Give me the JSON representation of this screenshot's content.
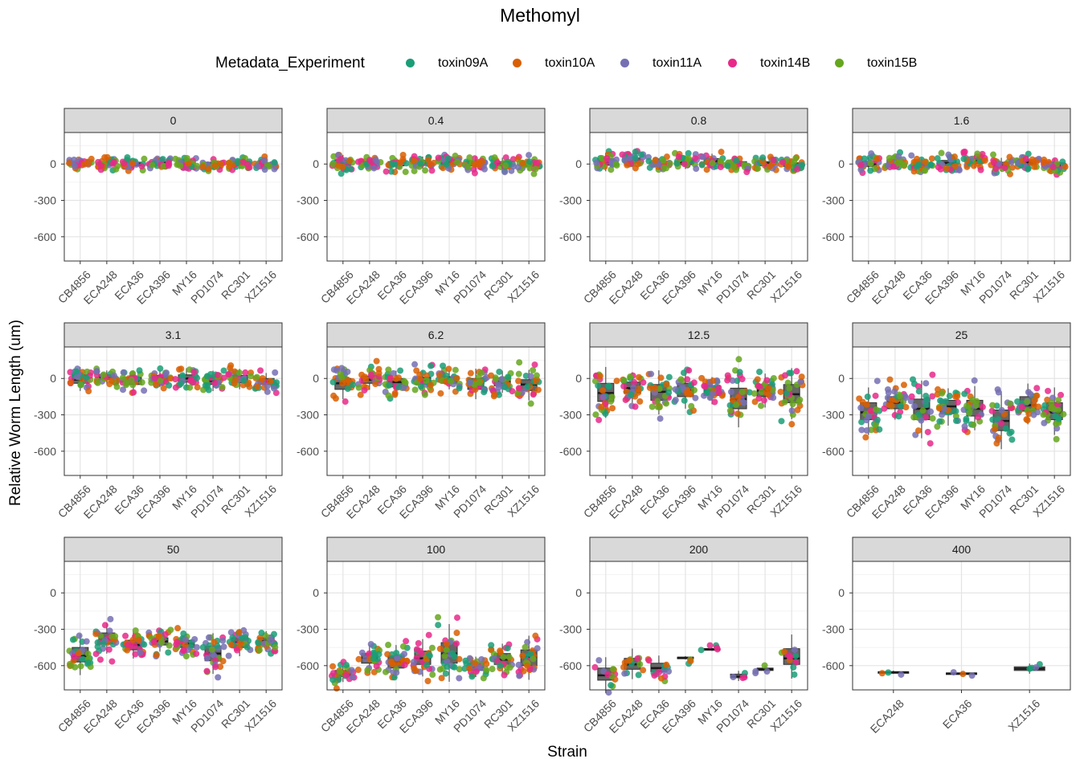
{
  "chart_data": {
    "type": "scatter",
    "subtype": "faceted boxplot with jittered points",
    "title": "Methomyl",
    "xlabel": "Strain",
    "ylabel": "Relative Worm Length (um)",
    "ylim": [
      -800,
      260
    ],
    "y_ticks": [
      0,
      -300,
      -600
    ],
    "grid": true,
    "legend_position": "top",
    "legend": {
      "title": "Metadata_Experiment",
      "entries": [
        {
          "name": "toxin09A",
          "color": "#1b9e77"
        },
        {
          "name": "toxin10A",
          "color": "#d95f02"
        },
        {
          "name": "toxin11A",
          "color": "#7570b3"
        },
        {
          "name": "toxin14B",
          "color": "#e7298a"
        },
        {
          "name": "toxin15B",
          "color": "#66a61e"
        }
      ]
    },
    "strains": [
      "CB4856",
      "ECA248",
      "ECA36",
      "ECA396",
      "MY16",
      "PD1074",
      "RC301",
      "XZ1516"
    ],
    "panels": [
      {
        "label": "0",
        "categories": [
          "CB4856",
          "ECA248",
          "ECA36",
          "ECA396",
          "MY16",
          "PD1074",
          "RC301",
          "XZ1516"
        ],
        "boxes": [
          [
            -15,
            0,
            15
          ],
          [
            -10,
            5,
            20
          ],
          [
            -15,
            0,
            15
          ],
          [
            -10,
            5,
            20
          ],
          [
            -20,
            -5,
            15
          ],
          [
            -15,
            0,
            15
          ],
          [
            -15,
            0,
            15
          ],
          [
            -20,
            -5,
            10
          ]
        ],
        "spread": 35,
        "toxins": [
          "toxin09A",
          "toxin10A",
          "toxin11A",
          "toxin14B",
          "toxin15B"
        ]
      },
      {
        "label": "0.4",
        "categories": [
          "CB4856",
          "ECA248",
          "ECA36",
          "ECA396",
          "MY16",
          "PD1074",
          "RC301",
          "XZ1516"
        ],
        "boxes": [
          [
            -10,
            10,
            35
          ],
          [
            -10,
            5,
            25
          ],
          [
            -15,
            0,
            20
          ],
          [
            -5,
            10,
            30
          ],
          [
            -5,
            15,
            35
          ],
          [
            -15,
            5,
            25
          ],
          [
            -15,
            0,
            20
          ],
          [
            -20,
            -5,
            15
          ]
        ],
        "spread": 45,
        "toxins": [
          "toxin09A",
          "toxin10A",
          "toxin11A",
          "toxin14B",
          "toxin15B"
        ]
      },
      {
        "label": "0.8",
        "categories": [
          "CB4856",
          "ECA248",
          "ECA36",
          "ECA396",
          "MY16",
          "PD1074",
          "RC301",
          "XZ1516"
        ],
        "boxes": [
          [
            -10,
            15,
            45
          ],
          [
            10,
            30,
            50
          ],
          [
            -20,
            -5,
            15
          ],
          [
            -5,
            15,
            35
          ],
          [
            0,
            25,
            45
          ],
          [
            -15,
            0,
            20
          ],
          [
            -15,
            5,
            20
          ],
          [
            -20,
            -5,
            10
          ]
        ],
        "spread": 45,
        "toxins": [
          "toxin09A",
          "toxin10A",
          "toxin11A",
          "toxin14B",
          "toxin15B"
        ]
      },
      {
        "label": "1.6",
        "categories": [
          "CB4856",
          "ECA248",
          "ECA36",
          "ECA396",
          "MY16",
          "PD1074",
          "RC301",
          "XZ1516"
        ],
        "boxes": [
          [
            -20,
            0,
            20
          ],
          [
            -5,
            15,
            35
          ],
          [
            -30,
            -10,
            10
          ],
          [
            -10,
            10,
            30
          ],
          [
            5,
            25,
            45
          ],
          [
            -25,
            -5,
            15
          ],
          [
            -5,
            15,
            35
          ],
          [
            -25,
            -10,
            10
          ]
        ],
        "spread": 45,
        "toxins": [
          "toxin09A",
          "toxin10A",
          "toxin11A",
          "toxin14B",
          "toxin15B"
        ]
      },
      {
        "label": "3.1",
        "categories": [
          "CB4856",
          "ECA248",
          "ECA36",
          "ECA396",
          "MY16",
          "PD1074",
          "RC301",
          "XZ1516"
        ],
        "boxes": [
          [
            -40,
            -10,
            30
          ],
          [
            -10,
            10,
            30
          ],
          [
            -50,
            -20,
            10
          ],
          [
            -25,
            0,
            25
          ],
          [
            -30,
            0,
            30
          ],
          [
            -50,
            -20,
            10
          ],
          [
            -35,
            -5,
            25
          ],
          [
            -50,
            -25,
            0
          ]
        ],
        "spread": 70,
        "toxins": [
          "toxin09A",
          "toxin10A",
          "toxin11A",
          "toxin14B",
          "toxin15B"
        ]
      },
      {
        "label": "6.2",
        "categories": [
          "CB4856",
          "ECA248",
          "ECA36",
          "ECA396",
          "MY16",
          "PD1074",
          "RC301",
          "XZ1516"
        ],
        "boxes": [
          [
            -90,
            -40,
            0
          ],
          [
            -40,
            -10,
            20
          ],
          [
            -70,
            -30,
            0
          ],
          [
            -50,
            -20,
            10
          ],
          [
            -40,
            -10,
            15
          ],
          [
            -90,
            -40,
            0
          ],
          [
            -60,
            -25,
            5
          ],
          [
            -100,
            -50,
            -10
          ]
        ],
        "spread": 90,
        "toxins": [
          "toxin09A",
          "toxin10A",
          "toxin11A",
          "toxin14B",
          "toxin15B"
        ]
      },
      {
        "label": "12.5",
        "categories": [
          "CB4856",
          "ECA248",
          "ECA36",
          "ECA396",
          "MY16",
          "PD1074",
          "RC301",
          "XZ1516"
        ],
        "boxes": [
          [
            -190,
            -120,
            -40
          ],
          [
            -120,
            -80,
            -30
          ],
          [
            -180,
            -110,
            -50
          ],
          [
            -150,
            -100,
            -40
          ],
          [
            -140,
            -100,
            -60
          ],
          [
            -250,
            -170,
            -80
          ],
          [
            -150,
            -100,
            -50
          ],
          [
            -200,
            -130,
            -50
          ]
        ],
        "spread": 90,
        "toxins": [
          "toxin09A",
          "toxin10A",
          "toxin11A",
          "toxin14B",
          "toxin15B"
        ]
      },
      {
        "label": "25",
        "categories": [
          "CB4856",
          "ECA248",
          "ECA36",
          "ECA396",
          "MY16",
          "PD1074",
          "RC301",
          "XZ1516"
        ],
        "boxes": [
          [
            -340,
            -280,
            -200
          ],
          [
            -250,
            -200,
            -150
          ],
          [
            -340,
            -250,
            -170
          ],
          [
            -290,
            -230,
            -180
          ],
          [
            -310,
            -250,
            -180
          ],
          [
            -430,
            -350,
            -260
          ],
          [
            -270,
            -220,
            -150
          ],
          [
            -340,
            -280,
            -200
          ]
        ],
        "spread": 110,
        "toxins": [
          "toxin09A",
          "toxin10A",
          "toxin11A",
          "toxin14B",
          "toxin15B"
        ]
      },
      {
        "label": "50",
        "categories": [
          "CB4856",
          "ECA248",
          "ECA36",
          "ECA396",
          "MY16",
          "PD1074",
          "RC301",
          "XZ1516"
        ],
        "boxes": [
          [
            -570,
            -520,
            -450
          ],
          [
            -420,
            -380,
            -330
          ],
          [
            -470,
            -430,
            -390
          ],
          [
            -430,
            -400,
            -370
          ],
          [
            -450,
            -420,
            -390
          ],
          [
            -560,
            -500,
            -440
          ],
          [
            -450,
            -410,
            -370
          ],
          [
            -430,
            -400,
            -370
          ]
        ],
        "spread": 90,
        "toxins": [
          "toxin09A",
          "toxin10A",
          "toxin11A",
          "toxin14B",
          "toxin15B"
        ]
      },
      {
        "label": "100",
        "categories": [
          "CB4856",
          "ECA248",
          "ECA36",
          "ECA396",
          "MY16",
          "PD1074",
          "RC301",
          "XZ1516"
        ],
        "boxes": [
          [
            -690,
            -670,
            -640
          ],
          [
            -580,
            -540,
            -500
          ],
          [
            -620,
            -570,
            -520
          ],
          [
            -590,
            -540,
            -480
          ],
          [
            -580,
            -500,
            -410
          ],
          [
            -640,
            -610,
            -580
          ],
          [
            -590,
            -550,
            -500
          ],
          [
            -600,
            -530,
            -470
          ]
        ],
        "spread": 80,
        "toxins": [
          "toxin09A",
          "toxin10A",
          "toxin11A",
          "toxin14B",
          "toxin15B"
        ]
      },
      {
        "label": "200",
        "categories": [
          "CB4856",
          "ECA248",
          "ECA36",
          "ECA396",
          "MY16",
          "PD1074",
          "RC301",
          "XZ1516"
        ],
        "boxes": [
          [
            -720,
            -680,
            -620
          ],
          [
            -630,
            -590,
            -540
          ],
          [
            -650,
            -620,
            -580
          ],
          [
            -540,
            -535,
            -530
          ],
          [
            -470,
            -465,
            -460
          ],
          [
            -700,
            -690,
            -670
          ],
          [
            -640,
            -630,
            -620
          ],
          [
            -590,
            -540,
            -460
          ]
        ],
        "spread": 50,
        "counts": [
          12,
          12,
          14,
          3,
          5,
          4,
          4,
          10
        ],
        "toxins": [
          "toxin09A",
          "toxin10A",
          "toxin11A",
          "toxin14B",
          "toxin15B"
        ]
      },
      {
        "label": "400",
        "categories": [
          "ECA248",
          "ECA36",
          "XZ1516"
        ],
        "boxes": [
          [
            -660,
            -655,
            -650
          ],
          [
            -670,
            -665,
            -660
          ],
          [
            -640,
            -625,
            -610
          ]
        ],
        "spread": 20,
        "counts": [
          3,
          3,
          4
        ],
        "toxins": [
          "toxin09A",
          "toxin10A",
          "toxin11A"
        ]
      }
    ]
  }
}
